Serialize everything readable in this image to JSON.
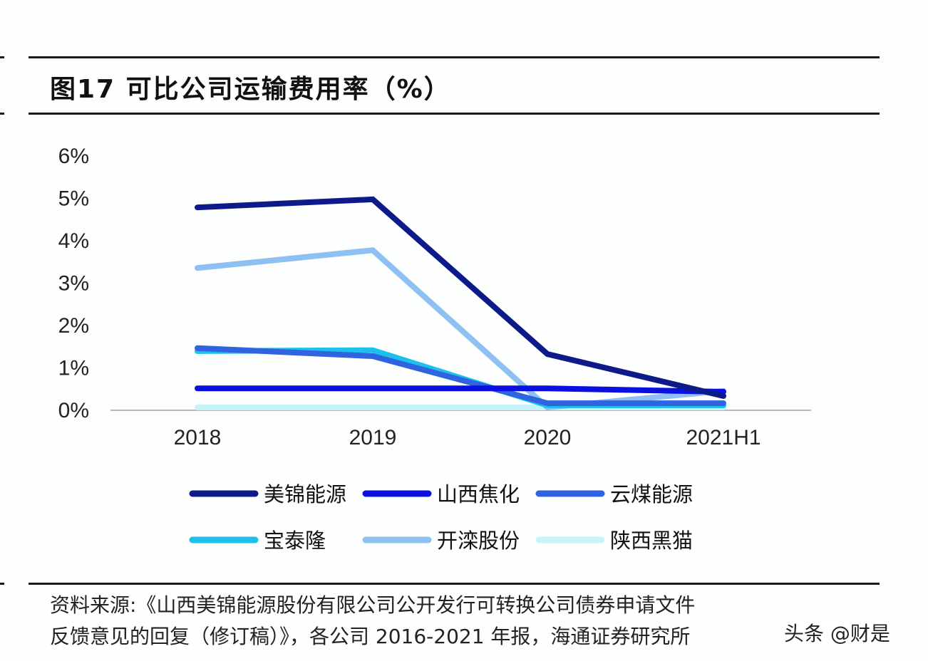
{
  "figure": {
    "title": "图17 可比公司运输费用率（%）",
    "source_line1": "资料来源:《山西美锦能源股份有限公司公开发行可转换公司债券申请文件",
    "source_line2": "反馈意见的回复（修订稿）》，各公司 2016-2021 年报，海通证券研究所",
    "watermark": "头条 @财是"
  },
  "chart_data": {
    "type": "line",
    "title": "图17 可比公司运输费用率（%）",
    "xlabel": "",
    "ylabel": "",
    "categories": [
      "2018",
      "2019",
      "2020",
      "2021H1"
    ],
    "ylim": [
      0,
      6
    ],
    "yticks": [
      0,
      1,
      2,
      3,
      4,
      5,
      6
    ],
    "ytick_labels": [
      "0%",
      "1%",
      "2%",
      "3%",
      "4%",
      "5%",
      "6%"
    ],
    "grid": false,
    "legend_position": "bottom",
    "series": [
      {
        "name": "美锦能源",
        "color": "#0d1a8a",
        "values": [
          4.77,
          4.96,
          1.31,
          0.32
        ]
      },
      {
        "name": "山西焦化",
        "color": "#0a10e0",
        "values": [
          0.5,
          0.5,
          0.5,
          0.42
        ]
      },
      {
        "name": "云煤能源",
        "color": "#2f63e0",
        "values": [
          1.45,
          1.26,
          0.15,
          0.15
        ]
      },
      {
        "name": "宝泰隆",
        "color": "#1cc0ea",
        "values": [
          1.38,
          1.4,
          0.1,
          0.1
        ]
      },
      {
        "name": "开滦股份",
        "color": "#8ec0f2",
        "values": [
          3.34,
          3.76,
          0.05,
          0.44
        ]
      },
      {
        "name": "陕西黑猫",
        "color": "#c6f4f8",
        "values": [
          0.05,
          0.05,
          0.05,
          0.05
        ]
      }
    ]
  }
}
